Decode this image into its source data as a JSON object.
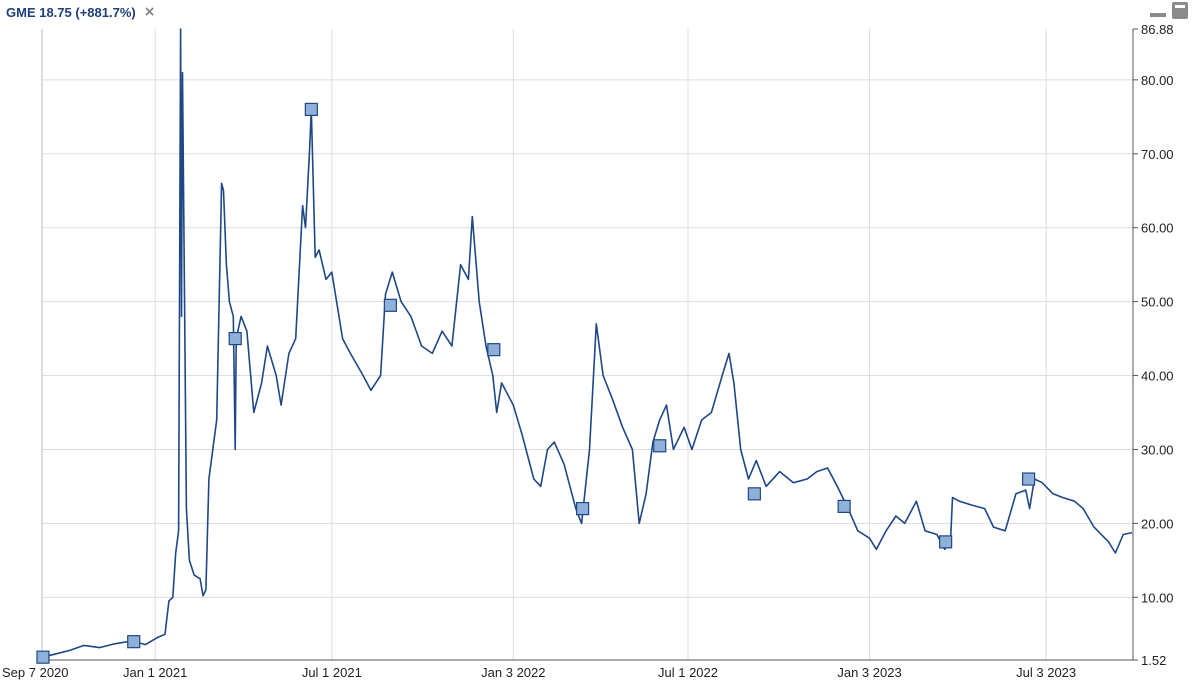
{
  "header": {
    "title": "GME 18.75 (+881.7%)",
    "close_glyph": "×",
    "close_icon": "close-icon",
    "minimize_icon": "minimize-icon",
    "panel_icon": "panel-toggle-icon"
  },
  "chart_data": {
    "type": "line",
    "title": "GME 18.75 (+881.7%)",
    "line_color": "#1f4788",
    "marker_fill": "#8fb0d8",
    "grid": true,
    "x_range": [
      "2020-09-07",
      "2023-09-30"
    ],
    "ylim": [
      1.52,
      86.88
    ],
    "y_ticks": [
      {
        "value": 86.88,
        "label": "86.88"
      },
      {
        "value": 80,
        "label": "80.00"
      },
      {
        "value": 70,
        "label": "70.00"
      },
      {
        "value": 60,
        "label": "60.00"
      },
      {
        "value": 50,
        "label": "50.00"
      },
      {
        "value": 40,
        "label": "40.00"
      },
      {
        "value": 30,
        "label": "30.00"
      },
      {
        "value": 20,
        "label": "20.00"
      },
      {
        "value": 10,
        "label": "10.00"
      },
      {
        "value": 1.52,
        "label": "1.52"
      }
    ],
    "x_ticks": [
      {
        "date": "2020-09-07",
        "label": "Sep 7 2020"
      },
      {
        "date": "2021-01-01",
        "label": "Jan 1 2021"
      },
      {
        "date": "2021-07-01",
        "label": "Jul 1 2021"
      },
      {
        "date": "2022-01-03",
        "label": "Jan 3 2022"
      },
      {
        "date": "2022-07-01",
        "label": "Jul 1 2022"
      },
      {
        "date": "2023-01-03",
        "label": "Jan 3 2023"
      },
      {
        "date": "2023-07-03",
        "label": "Jul 3 2023"
      }
    ],
    "series": [
      {
        "points": [
          [
            "2020-09-07",
            1.9
          ],
          [
            "2020-09-20",
            2.3
          ],
          [
            "2020-10-05",
            2.8
          ],
          [
            "2020-10-20",
            3.5
          ],
          [
            "2020-11-05",
            3.2
          ],
          [
            "2020-11-20",
            3.7
          ],
          [
            "2020-12-08",
            4.1
          ],
          [
            "2020-12-22",
            3.6
          ],
          [
            "2021-01-04",
            4.6
          ],
          [
            "2021-01-11",
            5.0
          ],
          [
            "2021-01-15",
            9.5
          ],
          [
            "2021-01-19",
            10.0
          ],
          [
            "2021-01-22",
            16.0
          ],
          [
            "2021-01-25",
            19.0
          ],
          [
            "2021-01-27",
            86.88
          ],
          [
            "2021-01-28",
            48.0
          ],
          [
            "2021-01-29",
            81.0
          ],
          [
            "2021-02-02",
            22.0
          ],
          [
            "2021-02-05",
            15.0
          ],
          [
            "2021-02-10",
            13.0
          ],
          [
            "2021-02-16",
            12.5
          ],
          [
            "2021-02-19",
            10.2
          ],
          [
            "2021-02-22",
            11.0
          ],
          [
            "2021-02-25",
            26.0
          ],
          [
            "2021-03-01",
            30.0
          ],
          [
            "2021-03-05",
            34.0
          ],
          [
            "2021-03-10",
            66.0
          ],
          [
            "2021-03-12",
            65.0
          ],
          [
            "2021-03-15",
            55.0
          ],
          [
            "2021-03-18",
            50.0
          ],
          [
            "2021-03-22",
            48.0
          ],
          [
            "2021-03-24",
            30.0
          ],
          [
            "2021-03-25",
            45.0
          ],
          [
            "2021-03-30",
            48.0
          ],
          [
            "2021-04-05",
            46.0
          ],
          [
            "2021-04-12",
            35.0
          ],
          [
            "2021-04-20",
            39.0
          ],
          [
            "2021-04-26",
            44.0
          ],
          [
            "2021-05-05",
            40.0
          ],
          [
            "2021-05-10",
            36.0
          ],
          [
            "2021-05-18",
            43.0
          ],
          [
            "2021-05-25",
            45.0
          ],
          [
            "2021-06-01",
            63.0
          ],
          [
            "2021-06-04",
            60.0
          ],
          [
            "2021-06-08",
            70.0
          ],
          [
            "2021-06-10",
            76.0
          ],
          [
            "2021-06-14",
            56.0
          ],
          [
            "2021-06-18",
            57.0
          ],
          [
            "2021-06-25",
            53.0
          ],
          [
            "2021-07-01",
            54.0
          ],
          [
            "2021-07-12",
            45.0
          ],
          [
            "2021-07-20",
            43.0
          ],
          [
            "2021-08-02",
            40.0
          ],
          [
            "2021-08-10",
            38.0
          ],
          [
            "2021-08-20",
            40.0
          ],
          [
            "2021-08-25",
            51.0
          ],
          [
            "2021-09-01",
            54.0
          ],
          [
            "2021-09-10",
            50.0
          ],
          [
            "2021-09-20",
            48.0
          ],
          [
            "2021-10-01",
            44.0
          ],
          [
            "2021-10-12",
            43.0
          ],
          [
            "2021-10-22",
            46.0
          ],
          [
            "2021-11-01",
            44.0
          ],
          [
            "2021-11-10",
            55.0
          ],
          [
            "2021-11-18",
            53.0
          ],
          [
            "2021-11-22",
            61.5
          ],
          [
            "2021-11-29",
            50.0
          ],
          [
            "2021-12-06",
            44.0
          ],
          [
            "2021-12-13",
            40.0
          ],
          [
            "2021-12-17",
            35.0
          ],
          [
            "2021-12-22",
            39.0
          ],
          [
            "2022-01-03",
            36.0
          ],
          [
            "2022-01-12",
            32.0
          ],
          [
            "2022-01-24",
            26.0
          ],
          [
            "2022-01-31",
            25.0
          ],
          [
            "2022-02-07",
            30.0
          ],
          [
            "2022-02-14",
            31.0
          ],
          [
            "2022-02-24",
            28.0
          ],
          [
            "2022-03-08",
            22.0
          ],
          [
            "2022-03-14",
            20.0
          ],
          [
            "2022-03-22",
            30.0
          ],
          [
            "2022-03-29",
            47.0
          ],
          [
            "2022-04-05",
            40.0
          ],
          [
            "2022-04-14",
            37.0
          ],
          [
            "2022-04-25",
            33.0
          ],
          [
            "2022-05-05",
            30.0
          ],
          [
            "2022-05-12",
            20.0
          ],
          [
            "2022-05-19",
            24.0
          ],
          [
            "2022-05-26",
            31.0
          ],
          [
            "2022-06-02",
            34.0
          ],
          [
            "2022-06-09",
            36.0
          ],
          [
            "2022-06-16",
            30.0
          ],
          [
            "2022-06-27",
            33.0
          ],
          [
            "2022-07-05",
            30.0
          ],
          [
            "2022-07-15",
            34.0
          ],
          [
            "2022-07-25",
            35.0
          ],
          [
            "2022-08-05",
            40.0
          ],
          [
            "2022-08-12",
            43.0
          ],
          [
            "2022-08-17",
            39.0
          ],
          [
            "2022-08-24",
            30.0
          ],
          [
            "2022-09-01",
            26.0
          ],
          [
            "2022-09-09",
            28.5
          ],
          [
            "2022-09-19",
            25.0
          ],
          [
            "2022-10-03",
            27.0
          ],
          [
            "2022-10-17",
            25.5
          ],
          [
            "2022-10-31",
            26.0
          ],
          [
            "2022-11-10",
            27.0
          ],
          [
            "2022-11-21",
            27.5
          ],
          [
            "2022-12-01",
            25.0
          ],
          [
            "2022-12-12",
            22.0
          ],
          [
            "2022-12-22",
            19.0
          ],
          [
            "2023-01-03",
            18.0
          ],
          [
            "2023-01-10",
            16.5
          ],
          [
            "2023-01-20",
            19.0
          ],
          [
            "2023-01-30",
            21.0
          ],
          [
            "2023-02-08",
            20.0
          ],
          [
            "2023-02-20",
            23.0
          ],
          [
            "2023-03-01",
            19.0
          ],
          [
            "2023-03-13",
            18.5
          ],
          [
            "2023-03-21",
            16.5
          ],
          [
            "2023-03-27",
            17.5
          ],
          [
            "2023-03-29",
            23.5
          ],
          [
            "2023-04-05",
            23.0
          ],
          [
            "2023-04-17",
            22.5
          ],
          [
            "2023-05-01",
            22.0
          ],
          [
            "2023-05-10",
            19.5
          ],
          [
            "2023-05-22",
            19.0
          ],
          [
            "2023-06-02",
            24.0
          ],
          [
            "2023-06-12",
            24.5
          ],
          [
            "2023-06-16",
            22.0
          ],
          [
            "2023-06-21",
            26.0
          ],
          [
            "2023-06-29",
            25.5
          ],
          [
            "2023-07-10",
            24.0
          ],
          [
            "2023-07-20",
            23.5
          ],
          [
            "2023-08-01",
            23.0
          ],
          [
            "2023-08-10",
            22.0
          ],
          [
            "2023-08-21",
            19.5
          ],
          [
            "2023-09-05",
            17.5
          ],
          [
            "2023-09-12",
            16.0
          ],
          [
            "2023-09-20",
            18.5
          ],
          [
            "2023-09-29",
            18.75
          ]
        ]
      }
    ],
    "markers": [
      [
        "2020-09-08",
        1.9
      ],
      [
        "2020-12-10",
        4.0
      ],
      [
        "2021-03-24",
        45.0
      ],
      [
        "2021-06-10",
        76.0
      ],
      [
        "2021-08-30",
        49.5
      ],
      [
        "2021-12-14",
        43.5
      ],
      [
        "2022-03-15",
        22.0
      ],
      [
        "2022-06-02",
        30.5
      ],
      [
        "2022-09-07",
        24.0
      ],
      [
        "2022-12-08",
        22.3
      ],
      [
        "2023-03-22",
        17.5
      ],
      [
        "2023-06-15",
        26.0
      ]
    ]
  }
}
